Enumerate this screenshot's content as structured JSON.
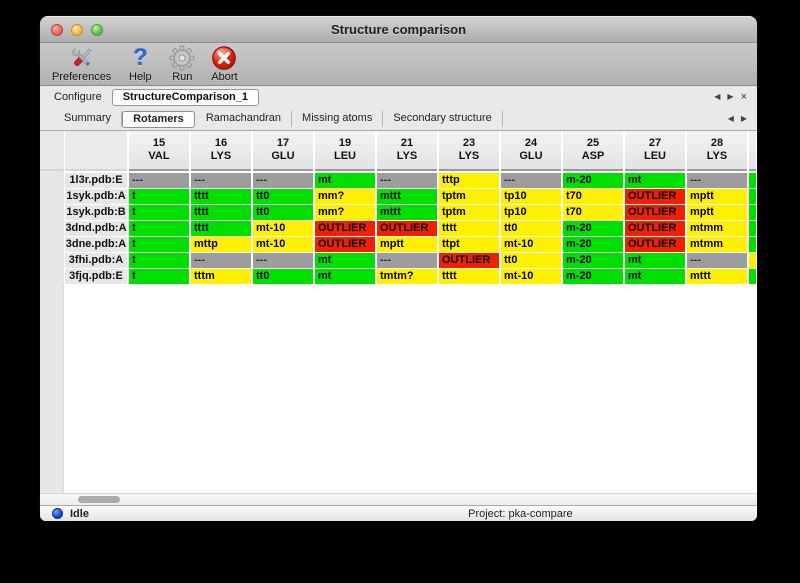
{
  "window": {
    "title": "Structure comparison"
  },
  "toolbar": {
    "items": [
      {
        "label": "Preferences",
        "icon": "tools-icon"
      },
      {
        "label": "Help",
        "icon": "help-icon"
      },
      {
        "label": "Run",
        "icon": "gear-icon"
      },
      {
        "label": "Abort",
        "icon": "abort-icon"
      }
    ]
  },
  "configure": {
    "label": "Configure",
    "value": "StructureComparison_1",
    "nav": [
      {
        "name": "prev-config-icon",
        "glyph": "◀"
      },
      {
        "name": "next-config-icon",
        "glyph": "▶"
      },
      {
        "name": "close-config-icon",
        "glyph": "×"
      }
    ]
  },
  "tabs": {
    "items": [
      "Summary",
      "Rotamers",
      "Ramachandran",
      "Missing atoms",
      "Secondary structure"
    ],
    "active": "Rotamers",
    "nav": [
      {
        "name": "prev-tab-icon",
        "glyph": "◀"
      },
      {
        "name": "next-tab-icon",
        "glyph": "▶"
      }
    ]
  },
  "table": {
    "columns": [
      {
        "num": "15",
        "res": "VAL"
      },
      {
        "num": "16",
        "res": "LYS"
      },
      {
        "num": "17",
        "res": "GLU"
      },
      {
        "num": "19",
        "res": "LEU"
      },
      {
        "num": "21",
        "res": "LYS"
      },
      {
        "num": "23",
        "res": "LYS"
      },
      {
        "num": "24",
        "res": "GLU"
      },
      {
        "num": "25",
        "res": "ASP"
      },
      {
        "num": "27",
        "res": "LEU"
      },
      {
        "num": "28",
        "res": "LYS"
      }
    ],
    "rows": [
      {
        "label": "1l3r.pdb:E",
        "cells": [
          {
            "text": "---",
            "status": "gray"
          },
          {
            "text": "---",
            "status": "gray"
          },
          {
            "text": "---",
            "status": "gray"
          },
          {
            "text": "mt",
            "status": "green"
          },
          {
            "text": "---",
            "status": "gray"
          },
          {
            "text": "tttp",
            "status": "yellow"
          },
          {
            "text": "---",
            "status": "gray"
          },
          {
            "text": "m-20",
            "status": "green"
          },
          {
            "text": "mt",
            "status": "green"
          },
          {
            "text": "---",
            "status": "gray"
          }
        ],
        "overflow": "green"
      },
      {
        "label": "1syk.pdb:A",
        "cells": [
          {
            "text": "t",
            "status": "green"
          },
          {
            "text": "tttt",
            "status": "green"
          },
          {
            "text": "tt0",
            "status": "green"
          },
          {
            "text": "mm?",
            "status": "yellow"
          },
          {
            "text": "mttt",
            "status": "green"
          },
          {
            "text": "tptm",
            "status": "yellow"
          },
          {
            "text": "tp10",
            "status": "yellow"
          },
          {
            "text": "t70",
            "status": "yellow"
          },
          {
            "text": "OUTLIER",
            "status": "red"
          },
          {
            "text": "mptt",
            "status": "yellow"
          }
        ],
        "overflow": "green"
      },
      {
        "label": "1syk.pdb:B",
        "cells": [
          {
            "text": "t",
            "status": "green"
          },
          {
            "text": "tttt",
            "status": "green"
          },
          {
            "text": "tt0",
            "status": "green"
          },
          {
            "text": "mm?",
            "status": "yellow"
          },
          {
            "text": "mttt",
            "status": "green"
          },
          {
            "text": "tptm",
            "status": "yellow"
          },
          {
            "text": "tp10",
            "status": "yellow"
          },
          {
            "text": "t70",
            "status": "yellow"
          },
          {
            "text": "OUTLIER",
            "status": "red"
          },
          {
            "text": "mptt",
            "status": "yellow"
          }
        ],
        "overflow": "green"
      },
      {
        "label": "3dnd.pdb:A",
        "cells": [
          {
            "text": "t",
            "status": "green"
          },
          {
            "text": "tttt",
            "status": "green"
          },
          {
            "text": "mt-10",
            "status": "yellow"
          },
          {
            "text": "OUTLIER",
            "status": "red"
          },
          {
            "text": "OUTLIER",
            "status": "red"
          },
          {
            "text": "tttt",
            "status": "yellow"
          },
          {
            "text": "tt0",
            "status": "yellow"
          },
          {
            "text": "m-20",
            "status": "green"
          },
          {
            "text": "OUTLIER",
            "status": "red"
          },
          {
            "text": "mtmm",
            "status": "yellow"
          }
        ],
        "overflow": "green"
      },
      {
        "label": "3dne.pdb:A",
        "cells": [
          {
            "text": "t",
            "status": "green"
          },
          {
            "text": "mttp",
            "status": "yellow"
          },
          {
            "text": "mt-10",
            "status": "yellow"
          },
          {
            "text": "OUTLIER",
            "status": "red"
          },
          {
            "text": "mptt",
            "status": "yellow"
          },
          {
            "text": "ttpt",
            "status": "yellow"
          },
          {
            "text": "mt-10",
            "status": "yellow"
          },
          {
            "text": "m-20",
            "status": "green"
          },
          {
            "text": "OUTLIER",
            "status": "red"
          },
          {
            "text": "mtmm",
            "status": "yellow"
          }
        ],
        "overflow": "green"
      },
      {
        "label": "3fhi.pdb:A",
        "cells": [
          {
            "text": "t",
            "status": "green"
          },
          {
            "text": "---",
            "status": "gray"
          },
          {
            "text": "---",
            "status": "gray"
          },
          {
            "text": "mt",
            "status": "green"
          },
          {
            "text": "---",
            "status": "gray"
          },
          {
            "text": "OUTLIER",
            "status": "red"
          },
          {
            "text": "tt0",
            "status": "yellow"
          },
          {
            "text": "m-20",
            "status": "green"
          },
          {
            "text": "mt",
            "status": "green"
          },
          {
            "text": "---",
            "status": "gray"
          }
        ],
        "overflow": "yellow"
      },
      {
        "label": "3fjq.pdb:E",
        "cells": [
          {
            "text": "t",
            "status": "green"
          },
          {
            "text": "tttm",
            "status": "yellow"
          },
          {
            "text": "tt0",
            "status": "green"
          },
          {
            "text": "mt",
            "status": "green"
          },
          {
            "text": "tmtm?",
            "status": "yellow"
          },
          {
            "text": "tttt",
            "status": "yellow"
          },
          {
            "text": "mt-10",
            "status": "yellow"
          },
          {
            "text": "m-20",
            "status": "green"
          },
          {
            "text": "mt",
            "status": "green"
          },
          {
            "text": "mttt",
            "status": "yellow"
          }
        ],
        "overflow": "green"
      }
    ]
  },
  "status_bar": {
    "status": "Idle",
    "project": "Project: pka-compare"
  },
  "colors": {
    "green": "#00e000",
    "yellow": "#fff000",
    "red": "#f22000",
    "gray": "#9d9d9d",
    "status_blue": "#1c48cc"
  }
}
